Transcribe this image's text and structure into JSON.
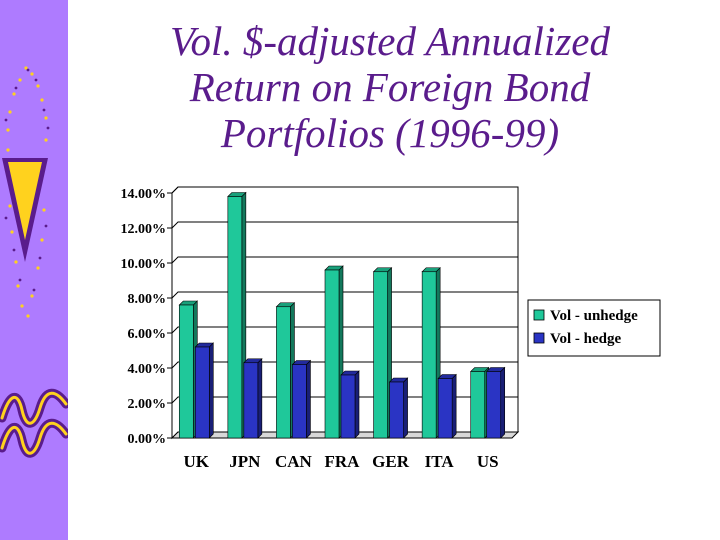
{
  "slide": {
    "title_lines": [
      "Vol. $-adjusted Annualized",
      "Return on Foreign Bond",
      "Portfolios (1996-99)"
    ],
    "sidebar_color": "#ae7bff",
    "accent_purple": "#5a1c8c",
    "accent_yellow": "#ffd21e"
  },
  "chart_data": {
    "type": "bar",
    "categories": [
      "UK",
      "JPN",
      "CAN",
      "FRA",
      "GER",
      "ITA",
      "US"
    ],
    "series": [
      {
        "name": "Vol - unhedge",
        "color": "#1fc89a",
        "values": [
          7.6,
          13.8,
          7.5,
          9.6,
          9.5,
          9.5,
          3.8
        ]
      },
      {
        "name": "Vol - hedge",
        "color": "#2a34c4",
        "values": [
          5.2,
          4.3,
          4.2,
          3.6,
          3.2,
          3.4,
          3.8
        ]
      }
    ],
    "ylim": [
      0,
      14
    ],
    "yticks": [
      "0.00%",
      "2.00%",
      "4.00%",
      "6.00%",
      "8.00%",
      "10.00%",
      "12.00%",
      "14.00%"
    ],
    "grid": true,
    "legend_position": "right",
    "title": "",
    "xlabel": "",
    "ylabel": ""
  }
}
